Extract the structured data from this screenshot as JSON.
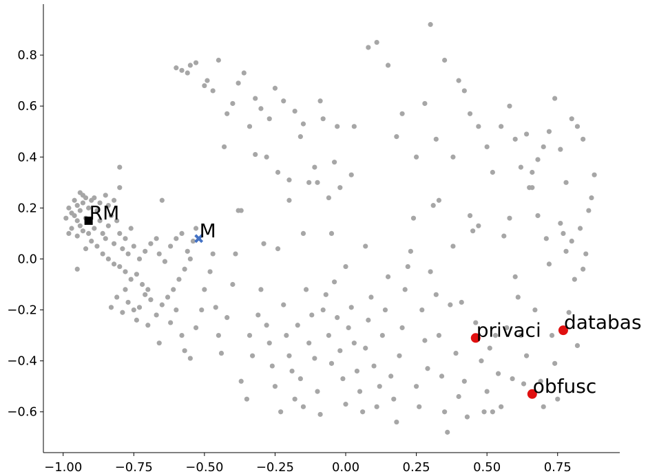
{
  "chart_data": {
    "type": "scatter",
    "title": "",
    "xlabel": "",
    "ylabel": "",
    "xlim": [
      -1.07,
      0.97
    ],
    "ylim": [
      -0.76,
      1.0
    ],
    "grid": false,
    "x_ticks": [
      -1.0,
      -0.75,
      -0.5,
      -0.25,
      0.0,
      0.25,
      0.5,
      0.75
    ],
    "x_tick_labels": [
      "−1.00",
      "−0.75",
      "−0.50",
      "−0.25",
      "0.00",
      "0.25",
      "0.50",
      "0.75"
    ],
    "y_ticks": [
      -0.6,
      -0.4,
      -0.2,
      0.0,
      0.2,
      0.4,
      0.6,
      0.8
    ],
    "y_tick_labels": [
      "−0.6",
      "−0.4",
      "−0.2",
      "0.0",
      "0.2",
      "0.4",
      "0.6",
      "0.8"
    ],
    "colors": {
      "background_points": "#a6a6a6",
      "highlighted": "#e01010",
      "M": "#4472c4",
      "RM": "#000000"
    },
    "background_points": [
      [
        -0.93,
        0.22
      ],
      [
        -0.94,
        0.19
      ],
      [
        -0.95,
        0.21
      ],
      [
        -0.92,
        0.24
      ],
      [
        -0.96,
        0.17
      ],
      [
        -0.93,
        0.25
      ],
      [
        -0.91,
        0.2
      ],
      [
        -0.95,
        0.15
      ],
      [
        -0.97,
        0.18
      ],
      [
        -0.94,
        0.13
      ],
      [
        -0.92,
        0.16
      ],
      [
        -0.9,
        0.23
      ],
      [
        -0.96,
        0.23
      ],
      [
        -0.98,
        0.2
      ],
      [
        -0.93,
        0.11
      ],
      [
        -0.95,
        0.09
      ],
      [
        -0.91,
        0.1
      ],
      [
        -0.89,
        0.12
      ],
      [
        -0.88,
        0.19
      ],
      [
        -0.87,
        0.15
      ],
      [
        -0.86,
        0.1
      ],
      [
        -0.84,
        0.13
      ],
      [
        -0.85,
        0.08
      ],
      [
        -0.83,
        0.17
      ],
      [
        -0.82,
        0.06
      ],
      [
        -0.8,
        0.1
      ],
      [
        -0.79,
        0.04
      ],
      [
        -0.81,
        0.15
      ],
      [
        -0.78,
        0.08
      ],
      [
        -0.77,
        0.02
      ],
      [
        -0.76,
        0.12
      ],
      [
        -0.75,
        0.05
      ],
      [
        -0.99,
        0.16
      ],
      [
        -0.97,
        0.12
      ],
      [
        -0.98,
        0.1
      ],
      [
        -0.94,
        0.26
      ],
      [
        -0.89,
        0.24
      ],
      [
        -0.87,
        0.22
      ],
      [
        -0.85,
        0.25
      ],
      [
        -0.84,
        0.21
      ],
      [
        -0.82,
        0.23
      ],
      [
        -0.8,
        0.36
      ],
      [
        -0.8,
        0.28
      ],
      [
        -0.95,
        -0.04
      ],
      [
        -0.92,
        0.04
      ],
      [
        -0.9,
        0.07
      ],
      [
        -0.88,
        0.05
      ],
      [
        -0.86,
        0.02
      ],
      [
        -0.84,
        0.0
      ],
      [
        -0.82,
        -0.02
      ],
      [
        -0.8,
        -0.03
      ],
      [
        -0.78,
        -0.05
      ],
      [
        -0.76,
        -0.08
      ],
      [
        -0.74,
        -0.06
      ],
      [
        -0.72,
        -0.1
      ],
      [
        -0.7,
        -0.12
      ],
      [
        -0.73,
        0.0
      ],
      [
        -0.71,
        0.03
      ],
      [
        -0.69,
        0.06
      ],
      [
        -0.67,
        0.08
      ],
      [
        -0.66,
        0.02
      ],
      [
        -0.64,
        -0.01
      ],
      [
        -0.65,
        0.23
      ],
      [
        -0.62,
        0.05
      ],
      [
        -0.6,
        0.08
      ],
      [
        -0.58,
        0.1
      ],
      [
        -0.56,
        0.03
      ],
      [
        -0.54,
        0.07
      ],
      [
        -0.53,
        0.12
      ],
      [
        -0.55,
        0.0
      ],
      [
        -0.57,
        -0.04
      ],
      [
        -0.59,
        -0.08
      ],
      [
        -0.61,
        -0.12
      ],
      [
        -0.63,
        -0.15
      ],
      [
        -0.65,
        -0.18
      ],
      [
        -0.67,
        -0.22
      ],
      [
        -0.69,
        -0.16
      ],
      [
        -0.71,
        -0.14
      ],
      [
        -0.73,
        -0.19
      ],
      [
        -0.75,
        -0.2
      ],
      [
        -0.77,
        -0.17
      ],
      [
        -0.79,
        -0.21
      ],
      [
        -0.81,
        -0.15
      ],
      [
        -0.83,
        -0.19
      ],
      [
        -0.78,
        -0.12
      ],
      [
        -0.74,
        -0.24
      ],
      [
        -0.7,
        -0.26
      ],
      [
        -0.66,
        -0.33
      ],
      [
        -0.62,
        -0.25
      ],
      [
        -0.6,
        -0.2
      ],
      [
        -0.58,
        -0.3
      ],
      [
        -0.57,
        -0.36
      ],
      [
        -0.55,
        -0.39
      ],
      [
        -0.53,
        -0.27
      ],
      [
        -0.51,
        -0.2
      ],
      [
        -0.5,
        -0.12
      ],
      [
        -0.48,
        -0.05
      ],
      [
        -0.47,
        0.02
      ],
      [
        -0.46,
        -0.19
      ],
      [
        -0.45,
        -0.3
      ],
      [
        -0.44,
        -0.37
      ],
      [
        -0.42,
        -0.23
      ],
      [
        -0.4,
        -0.1
      ],
      [
        -0.39,
        0.02
      ],
      [
        -0.38,
        0.19
      ],
      [
        -0.37,
        -0.48
      ],
      [
        -0.35,
        -0.55
      ],
      [
        -0.34,
        -0.3
      ],
      [
        -0.33,
        -0.38
      ],
      [
        -0.31,
        -0.22
      ],
      [
        -0.3,
        -0.12
      ],
      [
        -0.29,
        0.06
      ],
      [
        -0.28,
        -0.26
      ],
      [
        -0.27,
        -0.33
      ],
      [
        -0.26,
        -0.42
      ],
      [
        -0.25,
        -0.5
      ],
      [
        -0.24,
        0.04
      ],
      [
        -0.23,
        -0.6
      ],
      [
        -0.22,
        -0.18
      ],
      [
        -0.21,
        -0.3
      ],
      [
        -0.2,
        -0.38
      ],
      [
        -0.19,
        -0.44
      ],
      [
        -0.18,
        -0.55
      ],
      [
        -0.17,
        -0.26
      ],
      [
        -0.16,
        -0.47
      ],
      [
        -0.15,
        -0.58
      ],
      [
        -0.14,
        -0.12
      ],
      [
        -0.13,
        -0.33
      ],
      [
        -0.12,
        -0.22
      ],
      [
        -0.11,
        -0.39
      ],
      [
        -0.1,
        -0.52
      ],
      [
        -0.09,
        -0.61
      ],
      [
        -0.08,
        -0.2
      ],
      [
        -0.07,
        -0.14
      ],
      [
        -0.06,
        -0.3
      ],
      [
        -0.05,
        -0.41
      ],
      [
        -0.04,
        -0.09
      ],
      [
        -0.03,
        -0.23
      ],
      [
        -0.02,
        -0.36
      ],
      [
        -0.01,
        -0.47
      ],
      [
        0.0,
        -0.57
      ],
      [
        0.01,
        -0.27
      ],
      [
        0.02,
        -0.19
      ],
      [
        0.03,
        -0.33
      ],
      [
        0.04,
        -0.44
      ],
      [
        0.05,
        -0.52
      ],
      [
        0.06,
        -0.6
      ],
      [
        0.07,
        -0.35
      ],
      [
        0.08,
        -0.24
      ],
      [
        0.09,
        -0.15
      ],
      [
        0.1,
        -0.42
      ],
      [
        0.11,
        -0.58
      ],
      [
        0.12,
        -0.5
      ],
      [
        0.13,
        -0.3
      ],
      [
        0.14,
        -0.2
      ],
      [
        0.15,
        -0.07
      ],
      [
        0.16,
        -0.46
      ],
      [
        0.17,
        -0.55
      ],
      [
        0.18,
        -0.64
      ],
      [
        0.19,
        -0.38
      ],
      [
        0.2,
        -0.27
      ],
      [
        0.21,
        -0.12
      ],
      [
        0.22,
        -0.03
      ],
      [
        0.23,
        0.03
      ],
      [
        0.24,
        0.16
      ],
      [
        0.25,
        -0.5
      ],
      [
        0.26,
        -0.58
      ],
      [
        0.27,
        -0.2
      ],
      [
        0.28,
        -0.32
      ],
      [
        0.29,
        -0.43
      ],
      [
        0.3,
        -0.05
      ],
      [
        0.31,
        0.21
      ],
      [
        0.32,
        -0.14
      ],
      [
        0.33,
        -0.3
      ],
      [
        0.34,
        -0.46
      ],
      [
        0.35,
        -0.6
      ],
      [
        0.36,
        -0.68
      ],
      [
        0.37,
        -0.18
      ],
      [
        0.38,
        0.05
      ],
      [
        0.39,
        -0.37
      ],
      [
        0.4,
        -0.54
      ],
      [
        0.41,
        -0.17
      ],
      [
        0.42,
        -0.48
      ],
      [
        0.43,
        -0.62
      ],
      [
        0.44,
        0.17
      ],
      [
        0.45,
        0.11
      ],
      [
        0.46,
        -0.25
      ],
      [
        0.47,
        0.13
      ],
      [
        0.48,
        -0.4
      ],
      [
        0.49,
        -0.6
      ],
      [
        0.5,
        -0.52
      ],
      [
        0.51,
        -0.35
      ],
      [
        0.52,
        -0.6
      ],
      [
        0.53,
        -0.3
      ],
      [
        0.54,
        -0.45
      ],
      [
        0.55,
        -0.58
      ],
      [
        0.56,
        0.09
      ],
      [
        0.57,
        -0.27
      ],
      [
        0.58,
        0.16
      ],
      [
        0.59,
        -0.47
      ],
      [
        0.6,
        -0.07
      ],
      [
        0.61,
        -0.15
      ],
      [
        0.62,
        -0.3
      ],
      [
        0.63,
        -0.49
      ],
      [
        0.64,
        -0.38
      ],
      [
        0.65,
        0.28
      ],
      [
        0.66,
        0.34
      ],
      [
        0.67,
        -0.2
      ],
      [
        0.68,
        0.17
      ],
      [
        0.69,
        -0.48
      ],
      [
        0.7,
        -0.58
      ],
      [
        0.71,
        0.08
      ],
      [
        0.72,
        -0.02
      ],
      [
        0.73,
        -0.3
      ],
      [
        0.74,
        -0.41
      ],
      [
        0.75,
        -0.55
      ],
      [
        0.76,
        0.14
      ],
      [
        0.77,
        0.1
      ],
      [
        0.78,
        0.03
      ],
      [
        0.79,
        -0.21
      ],
      [
        0.8,
        0.07
      ],
      [
        0.81,
        -0.08
      ],
      [
        0.82,
        -0.34
      ],
      [
        0.83,
        0.12
      ],
      [
        0.84,
        -0.04
      ],
      [
        0.85,
        0.02
      ],
      [
        0.86,
        0.19
      ],
      [
        0.87,
        0.24
      ],
      [
        0.88,
        0.33
      ],
      [
        -0.6,
        0.75
      ],
      [
        -0.58,
        0.74
      ],
      [
        -0.56,
        0.73
      ],
      [
        -0.55,
        0.76
      ],
      [
        -0.53,
        0.77
      ],
      [
        -0.5,
        0.68
      ],
      [
        -0.49,
        0.7
      ],
      [
        -0.47,
        0.66
      ],
      [
        -0.45,
        0.78
      ],
      [
        -0.42,
        0.57
      ],
      [
        -0.4,
        0.61
      ],
      [
        -0.38,
        0.69
      ],
      [
        -0.36,
        0.73
      ],
      [
        -0.34,
        0.52
      ],
      [
        -0.32,
        0.63
      ],
      [
        -0.3,
        0.59
      ],
      [
        -0.28,
        0.4
      ],
      [
        -0.27,
        0.55
      ],
      [
        -0.25,
        0.67
      ],
      [
        -0.24,
        0.34
      ],
      [
        -0.22,
        0.62
      ],
      [
        -0.2,
        0.31
      ],
      [
        -0.18,
        0.58
      ],
      [
        -0.16,
        0.48
      ],
      [
        -0.15,
        0.53
      ],
      [
        -0.13,
        0.3
      ],
      [
        -0.11,
        0.36
      ],
      [
        -0.09,
        0.62
      ],
      [
        -0.08,
        0.55
      ],
      [
        -0.06,
        0.24
      ],
      [
        -0.04,
        0.38
      ],
      [
        -0.03,
        0.52
      ],
      [
        -0.02,
        0.28
      ],
      [
        0.03,
        0.52
      ],
      [
        0.08,
        0.83
      ],
      [
        0.11,
        0.85
      ],
      [
        0.15,
        0.76
      ],
      [
        0.18,
        0.48
      ],
      [
        0.2,
        0.57
      ],
      [
        0.25,
        0.4
      ],
      [
        0.28,
        0.61
      ],
      [
        0.3,
        0.92
      ],
      [
        0.32,
        0.47
      ],
      [
        0.33,
        0.23
      ],
      [
        0.35,
        0.78
      ],
      [
        0.38,
        0.4
      ],
      [
        0.4,
        0.7
      ],
      [
        0.42,
        0.66
      ],
      [
        0.44,
        0.57
      ],
      [
        0.47,
        0.52
      ],
      [
        0.5,
        0.44
      ],
      [
        0.52,
        0.34
      ],
      [
        0.55,
        0.52
      ],
      [
        0.58,
        0.6
      ],
      [
        0.6,
        0.47
      ],
      [
        0.62,
        0.36
      ],
      [
        0.64,
        0.49
      ],
      [
        0.66,
        0.28
      ],
      [
        0.68,
        0.39
      ],
      [
        0.7,
        0.44
      ],
      [
        0.72,
        0.5
      ],
      [
        0.74,
        0.63
      ],
      [
        0.76,
        0.43
      ],
      [
        0.78,
        0.3
      ],
      [
        0.8,
        0.55
      ],
      [
        0.82,
        0.52
      ],
      [
        0.84,
        0.47
      ],
      [
        -0.43,
        0.44
      ],
      [
        -0.37,
        0.19
      ],
      [
        -0.32,
        0.41
      ],
      [
        -0.2,
        0.23
      ],
      [
        -0.1,
        0.3
      ],
      [
        0.07,
        0.05
      ],
      [
        0.02,
        0.33
      ],
      [
        -0.05,
        0.1
      ],
      [
        0.0,
        -0.03
      ],
      [
        -0.15,
        0.1
      ]
    ],
    "highlighted": [
      {
        "label": "privaci",
        "x": 0.46,
        "y": -0.31
      },
      {
        "label": "databas",
        "x": 0.77,
        "y": -0.28
      },
      {
        "label": "obfusc",
        "x": 0.66,
        "y": -0.53
      }
    ],
    "special": [
      {
        "label": "M",
        "x": -0.52,
        "y": 0.08,
        "marker": "x"
      },
      {
        "label": "RM",
        "x": -0.91,
        "y": 0.15,
        "marker": "square"
      }
    ]
  }
}
